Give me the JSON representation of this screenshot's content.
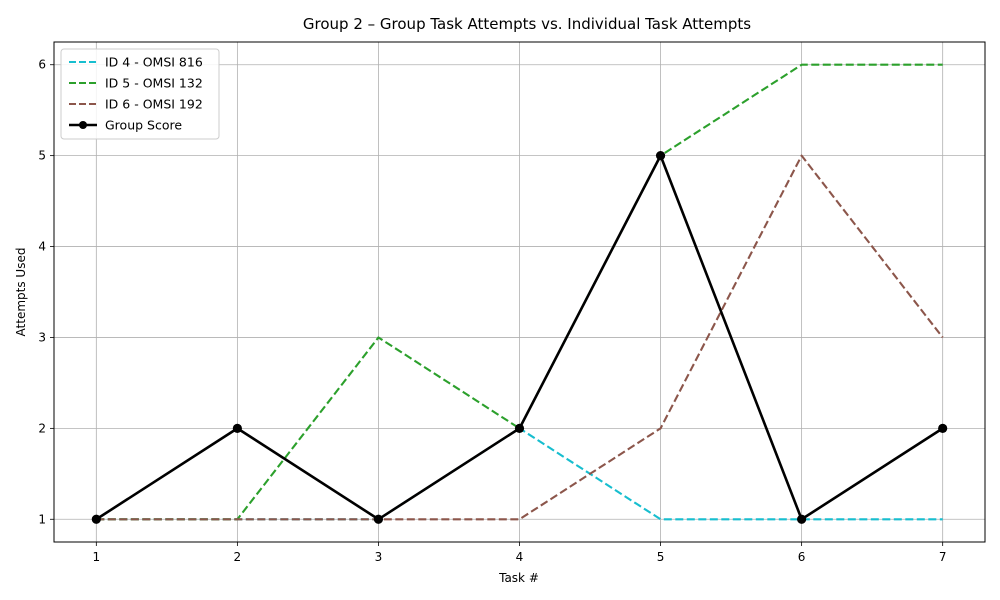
{
  "chart_data": {
    "type": "line",
    "title": "Group 2 – Group Task Attempts vs. Individual Task Attempts",
    "xlabel": "Task #",
    "ylabel": "Attempts Used",
    "x": [
      1,
      2,
      3,
      4,
      5,
      6,
      7
    ],
    "xlim": [
      0.7,
      7.3
    ],
    "ylim": [
      0.75,
      6.25
    ],
    "yticks": [
      1,
      2,
      3,
      4,
      5,
      6
    ],
    "grid": true,
    "legend_position": "top-left",
    "series": [
      {
        "name": "ID 4 - OMSI 816",
        "values": [
          1,
          1,
          1,
          2,
          1,
          1,
          1
        ],
        "color": "#17becf",
        "style": "dashed",
        "markers": false
      },
      {
        "name": "ID 5 - OMSI 132",
        "values": [
          1,
          1,
          3,
          2,
          5,
          6,
          6
        ],
        "color": "#2ca02c",
        "style": "dashed",
        "markers": false
      },
      {
        "name": "ID 6 - OMSI 192",
        "values": [
          1,
          1,
          1,
          1,
          2,
          5,
          3
        ],
        "color": "#8c564b",
        "style": "dashed",
        "markers": false
      },
      {
        "name": "Group Score",
        "values": [
          1,
          2,
          1,
          2,
          5,
          1,
          2
        ],
        "color": "#000000",
        "style": "solid",
        "markers": true
      }
    ]
  }
}
